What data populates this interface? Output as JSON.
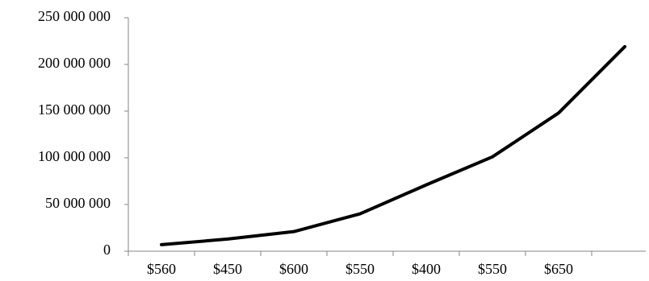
{
  "chart_data": {
    "type": "line",
    "categories": [
      "$560",
      "$450",
      "$600",
      "$550",
      "$400",
      "$550",
      "$650",
      null
    ],
    "series": [
      {
        "color": "#000000",
        "values": [
          7000000,
          13000000,
          21000000,
          40000000,
          71000000,
          101000000,
          148000000,
          219000000
        ]
      }
    ],
    "ylim": [
      0,
      250000000
    ],
    "yticks": [
      0,
      {
        "value": 50000000,
        "label": "50 000 000"
      },
      {
        "value": 100000000,
        "label": "100 000 000"
      },
      {
        "value": 150000000,
        "label": "150 000 000"
      },
      {
        "value": 200000000,
        "label": "200 000 000"
      },
      {
        "value": 250000000,
        "label": "250 000 000"
      }
    ],
    "grid": false
  }
}
